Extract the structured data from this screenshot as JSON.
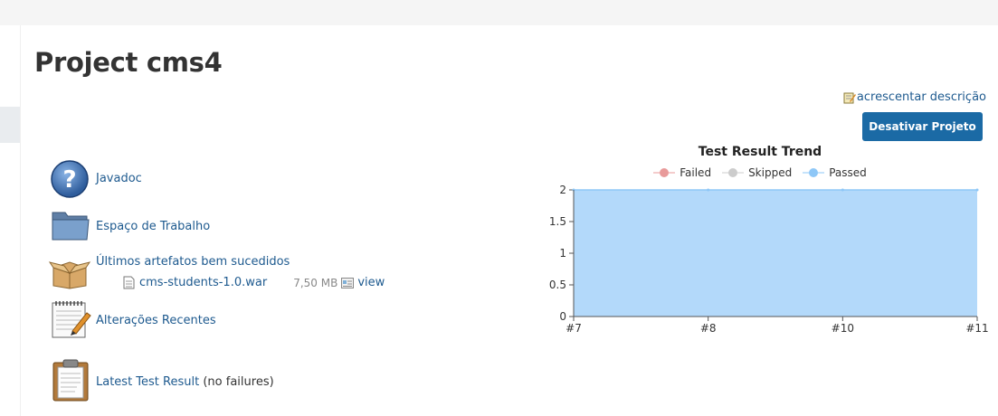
{
  "page": {
    "title": "Project cms4"
  },
  "actions": {
    "add_description": "acrescentar descrição",
    "disable_project": "Desativar Projeto"
  },
  "tasks": {
    "javadoc": "Javadoc",
    "workspace": "Espaço de Trabalho",
    "last_artifacts": "Últimos artefatos bem sucedidos",
    "recent_changes": "Alterações Recentes",
    "latest_test_result": "Latest Test Result",
    "latest_test_result_note": "(no failures)"
  },
  "artifact": {
    "file_name": "cms-students-1.0.war",
    "size": "7,50 MB",
    "view_label": "view"
  },
  "icons": {
    "help": "help-icon",
    "folder": "folder-icon",
    "package": "package-icon",
    "notepad": "notepad-icon",
    "clipboard": "clipboard-icon",
    "file": "file-icon",
    "edit": "edit-icon",
    "view": "view-icon"
  },
  "colors": {
    "link": "#1e5a8f",
    "button": "#1b6aa5",
    "failed": "#e89a9a",
    "skipped": "#cccccc",
    "passed": "#8ec7f7",
    "passed_fill": "#b3d9fa"
  },
  "chart_data": {
    "type": "area",
    "title": "Test Result Trend",
    "categories": [
      "#7",
      "#8",
      "#10",
      "#11"
    ],
    "series": [
      {
        "name": "Failed",
        "values": [
          0,
          0,
          0,
          0
        ]
      },
      {
        "name": "Skipped",
        "values": [
          0,
          0,
          0,
          0
        ]
      },
      {
        "name": "Passed",
        "values": [
          2,
          2,
          2,
          2
        ]
      }
    ],
    "y_ticks": [
      "0",
      "0.5",
      "1",
      "1.5",
      "2"
    ],
    "ylim": [
      0,
      2
    ],
    "legend_position": "top",
    "stacked": true,
    "grid": true
  }
}
